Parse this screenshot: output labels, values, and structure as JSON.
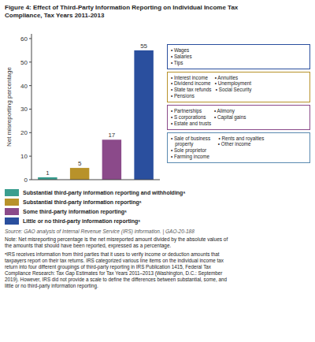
{
  "chart_data": {
    "type": "bar",
    "title": "Figure 4: Effect of Third-Party Information Reporting on Individual Income Tax\nCompliance, Tax Years 2011-2013",
    "ylabel": "Net misreporting percentage",
    "categories": [
      "Substantial third-party information reporting and withholdingᵃ",
      "Substantial third-party information reportingᵃ",
      "Some third-party information reportingᵃ",
      "Little or no third-party information reportingᵃ"
    ],
    "values": [
      1,
      5,
      17,
      55
    ],
    "colors": [
      "#3a9e8f",
      "#b8922a",
      "#8b4a8a",
      "#2a4f9e"
    ],
    "ylim": [
      0,
      62
    ],
    "yticks": [
      0,
      10,
      20,
      30,
      40,
      50,
      60
    ],
    "data_labels": true,
    "tick_labels": "y",
    "legend": "bottom",
    "grid": false,
    "annotations": [
      {
        "text": "• Wages\n• Salaries\n• Tips",
        "color": "#2a4f9e"
      },
      {
        "text": "• Interest income     • Annuities\n• Dividend income   • Unemployment\n• State tax refunds   • Social Security\n• Pensions",
        "color": "#b8922a"
      },
      {
        "text": "• Partnerships         • Alimony\n• S corporations      • Capital gains\n• Estate and trusts",
        "color": "#8b4a8a"
      },
      {
        "text": "• Sale of business      • Rents and royalties\n   property                  • Other income\n• Sole proprietor\n• Farming income",
        "color": "#5a8ab0"
      }
    ],
    "source": "Source: GAO analysis of Internal Revenue Service (IRS) information.  |  GAO-20-188",
    "note": "Note: Net misreporting percentage is the net misreported amount divided by the absolute values of\nthe amounts that should have been reported, expressed as a percentage.",
    "footnote": "ᵃIRS receives information from third parties that it uses to verify income or deduction amounts that\ntaxpayers report on their tax returns. IRS categorized various line items on the individual income tax\nreturn into four different groupings of third-party reporting in IRS Publication 1415, Federal Tax\nCompliance Research: Tax Gap Estimates for Tax Years 2011–2013 (Washington, D.C.: September\n2019). However, IRS did not provide a scale to define the differences between substantial, some, and\nlittle or no third-party information reporting."
  }
}
